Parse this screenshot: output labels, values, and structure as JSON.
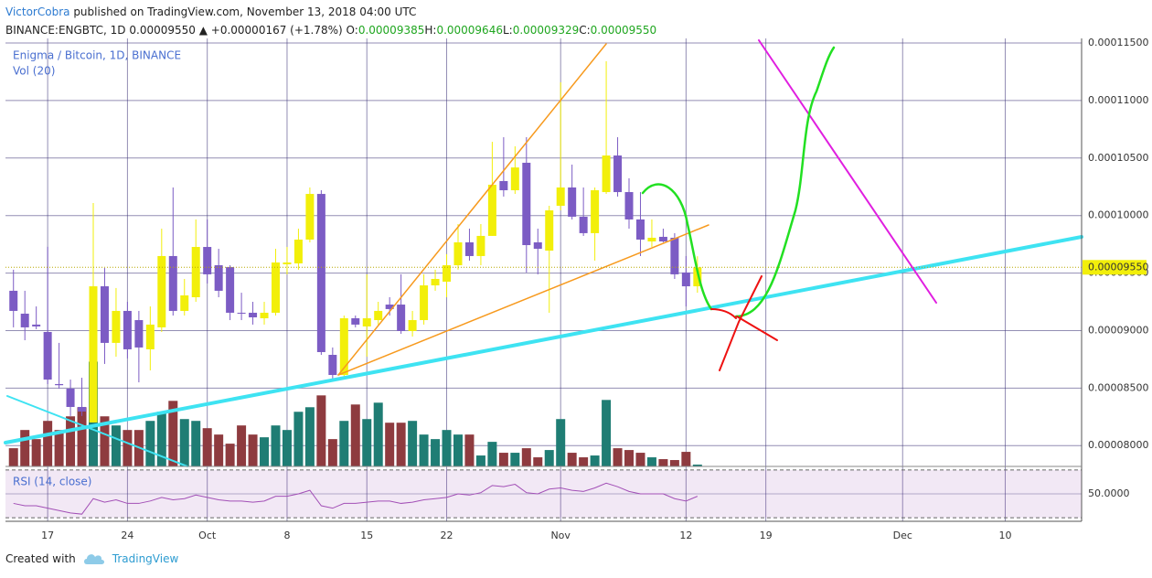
{
  "header": {
    "author": "VictorCobra",
    "published": "published on TradingView.com, November 13, 2018 04:00 UTC",
    "symbol": "BINANCE:ENGBTC, 1D",
    "last": "0.00009550",
    "change": "▲ +0.00000167 (+1.78%)",
    "ohlc": [
      {
        "key": "O:",
        "value": "0.00009385"
      },
      {
        "key": "H:",
        "value": "0.00009646"
      },
      {
        "key": "L:",
        "value": "0.00009329"
      },
      {
        "key": "C:",
        "value": "0.00009550"
      }
    ]
  },
  "footer": {
    "created": "Created with",
    "brand": "TradingView"
  },
  "chart_data": {
    "type": "candlestick",
    "title": "Enigma / Bitcoin, 1D, BINANCE",
    "x": [
      257,
      258,
      259,
      260,
      261,
      262,
      263,
      264,
      265,
      266,
      267,
      268,
      269,
      270,
      271,
      272,
      273,
      274,
      275,
      276,
      277,
      278,
      279,
      280,
      281,
      282,
      283,
      284,
      285,
      286,
      287,
      288,
      289,
      290,
      291,
      292,
      293,
      294,
      295,
      296,
      297,
      298,
      299,
      300,
      301,
      302,
      303,
      304,
      305,
      306,
      307,
      308,
      309,
      310,
      311,
      312,
      313,
      314,
      315,
      316,
      317
    ],
    "open": [
      9.346e-05,
      9.147e-05,
      9.052e-05,
      8.988e-05,
      8.535e-05,
      8.495e-05,
      8.336e-05,
      8.201e-05,
      9.385e-05,
      8.893e-05,
      9.171e-05,
      9.091e-05,
      8.837e-05,
      9.028e-05,
      9.648e-05,
      9.171e-05,
      9.29e-05,
      9.727e-05,
      9.568e-05,
      9.552e-05,
      9.155e-05,
      9.155e-05,
      9.107e-05,
      9.155e-05,
      9.576e-05,
      9.584e-05,
      9.791e-05,
      0.00010188,
      8.789e-05,
      8.614e-05,
      9.107e-05,
      9.036e-05,
      9.091e-05,
      9.226e-05,
      9.226e-05,
      8.996e-05,
      9.091e-05,
      9.393e-05,
      9.425e-05,
      9.568e-05,
      9.767e-05,
      9.648e-05,
      9.823e-05,
      0.000103,
      0.0001022,
      0.00010459,
      9.767e-05,
      9.695e-05,
      0.00010085,
      0.00010244,
      9.99e-05,
      9.847e-05,
      0.00010204,
      0.00010522,
      0.00010204,
      9.966e-05,
      9.775e-05,
      9.815e-05,
      9.807e-05,
      9.505e-05,
      9.385e-05
    ],
    "high": [
      9.529e-05,
      9.346e-05,
      9.21e-05,
      9.728e-05,
      8.893e-05,
      8.574e-05,
      8.59e-05,
      0.00010109,
      9.544e-05,
      9.37e-05,
      9.25e-05,
      9.171e-05,
      9.21e-05,
      9.886e-05,
      0.00010244,
      9.449e-05,
      9.966e-05,
      9.966e-05,
      9.711e-05,
      9.568e-05,
      9.329e-05,
      9.25e-05,
      9.25e-05,
      9.711e-05,
      9.727e-05,
      9.886e-05,
      0.00010244,
      0.0001022,
      8.853e-05,
      9.131e-05,
      9.131e-05,
      9.489e-05,
      9.25e-05,
      9.29e-05,
      9.489e-05,
      9.171e-05,
      9.489e-05,
      9.529e-05,
      9.664e-05,
      9.926e-05,
      9.886e-05,
      9.926e-05,
      0.00010641,
      0.00010681,
      0.00010602,
      0.00010681,
      9.886e-05,
      0.00010085,
      0.00011158,
      0.00010443,
      0.00010244,
      0.00010244,
      0.00011341,
      0.00010681,
      0.00010324,
      0.00010204,
      9.966e-05,
      9.886e-05,
      9.847e-05,
      9.648e-05,
      9.646e-05
    ],
    "low": [
      9.028e-05,
      8.916e-05,
      9.012e-05,
      8.535e-05,
      8.495e-05,
      8.257e-05,
      8.257e-05,
      8.201e-05,
      8.71e-05,
      8.773e-05,
      8.758e-05,
      8.55e-05,
      8.654e-05,
      8.988e-05,
      9.131e-05,
      9.131e-05,
      9.25e-05,
      9.409e-05,
      9.29e-05,
      9.091e-05,
      9.091e-05,
      9.052e-05,
      9.052e-05,
      9.131e-05,
      9.489e-05,
      9.529e-05,
      9.767e-05,
      8.789e-05,
      8.574e-05,
      8.598e-05,
      9.028e-05,
      8.773e-05,
      9.052e-05,
      9.131e-05,
      8.972e-05,
      8.948e-05,
      9.052e-05,
      9.346e-05,
      9.29e-05,
      9.529e-05,
      9.608e-05,
      9.568e-05,
      9.823e-05,
      0.00010165,
      0.00010188,
      9.505e-05,
      9.489e-05,
      9.155e-05,
      0.00010045,
      9.966e-05,
      9.823e-05,
      9.608e-05,
      0.00010188,
      0.00010165,
      9.886e-05,
      9.648e-05,
      9.727e-05,
      9.767e-05,
      9.449e-05,
      9.21e-05,
      9.329e-05
    ],
    "close": [
      9.171e-05,
      9.028e-05,
      9.036e-05,
      8.574e-05,
      8.525e-05,
      8.336e-05,
      8.296e-05,
      9.385e-05,
      8.893e-05,
      9.171e-05,
      8.837e-05,
      8.853e-05,
      9.052e-05,
      9.648e-05,
      9.171e-05,
      9.306e-05,
      9.727e-05,
      9.489e-05,
      9.346e-05,
      9.155e-05,
      9.147e-05,
      9.115e-05,
      9.155e-05,
      9.592e-05,
      9.592e-05,
      9.791e-05,
      0.00010188,
      8.813e-05,
      8.614e-05,
      9.107e-05,
      9.052e-05,
      9.107e-05,
      9.171e-05,
      9.187e-05,
      8.996e-05,
      9.091e-05,
      9.393e-05,
      9.449e-05,
      9.568e-05,
      9.767e-05,
      9.648e-05,
      9.823e-05,
      0.00010268,
      0.0001022,
      0.00010418,
      9.743e-05,
      9.711e-05,
      0.00010045,
      0.00010244,
      9.99e-05,
      9.847e-05,
      0.0001022,
      0.00010522,
      0.00010204,
      9.966e-05,
      9.791e-05,
      9.807e-05,
      9.775e-05,
      9.489e-05,
      9.385e-05,
      9.55e-05
    ],
    "up_color": "#f2ef0a",
    "down_color": "#7c5cc4",
    "xlim": [
      256.3,
      350.7
    ],
    "xticks": [
      {
        "value": 260,
        "label": "17"
      },
      {
        "value": 267,
        "label": "24"
      },
      {
        "value": 274,
        "label": "Oct"
      },
      {
        "value": 281,
        "label": "8"
      },
      {
        "value": 288,
        "label": "15"
      },
      {
        "value": 295,
        "label": "22"
      },
      {
        "value": 305,
        "label": "Nov"
      },
      {
        "value": 316,
        "label": "12"
      },
      {
        "value": 323,
        "label": "19"
      },
      {
        "value": 335,
        "label": "Dec"
      },
      {
        "value": 344,
        "label": "10"
      }
    ],
    "ylim": [
      7.819e-05,
      0.0001154
    ],
    "yticks": [
      {
        "value": 8e-05,
        "label": "0.00008000"
      },
      {
        "value": 8.5e-05,
        "label": "0.00008500"
      },
      {
        "value": 9e-05,
        "label": "0.00009000"
      },
      {
        "value": 9.5e-05,
        "label": "0.00009500"
      },
      {
        "value": 0.0001,
        "label": "0.00010000"
      },
      {
        "value": 0.000105,
        "label": "0.00010500"
      },
      {
        "value": 0.00011,
        "label": "0.00011000"
      },
      {
        "value": 0.000115,
        "label": "0.00011500"
      }
    ],
    "grid": true,
    "price_line": {
      "value": 9.55e-05,
      "label": "0.00009550",
      "color": "#f2ef0a"
    },
    "volume": {
      "name": "Vol (20)",
      "ylim": [
        0,
        470
      ],
      "up_color": "#1f7d74",
      "down_color": "#8e3b3f",
      "values": [
        20,
        40,
        30,
        50,
        40,
        55,
        65,
        115,
        55,
        45,
        40,
        40,
        50,
        60,
        72,
        52,
        50,
        42,
        35,
        25,
        45,
        35,
        32,
        45,
        40,
        60,
        65,
        78,
        30,
        50,
        68,
        52,
        70,
        48,
        48,
        50,
        35,
        30,
        40,
        35,
        35,
        12,
        27,
        15,
        15,
        20,
        10,
        18,
        52,
        15,
        10,
        12,
        73,
        20,
        18,
        15,
        10,
        8,
        7,
        16,
        2
      ]
    },
    "rsi": {
      "name": "RSI (14, close)",
      "color": "#a24fb6",
      "ylim": [
        27,
        73
      ],
      "levels": [
        30,
        70
      ],
      "yticks": [
        {
          "value": 50,
          "label": "50.0000"
        }
      ],
      "values": [
        42,
        40,
        40,
        38,
        36,
        34,
        33,
        46,
        43,
        45,
        42,
        42,
        44,
        47,
        45,
        46,
        49,
        47,
        45,
        44,
        44,
        43,
        44,
        48,
        48,
        50,
        53,
        40,
        38,
        42,
        42,
        43,
        44,
        44,
        42,
        43,
        45,
        46,
        47,
        50,
        49,
        51,
        57,
        56,
        58,
        51,
        50,
        54,
        55,
        53,
        52,
        55,
        59,
        56,
        52,
        50,
        50,
        50,
        46,
        44,
        48
      ]
    }
  }
}
